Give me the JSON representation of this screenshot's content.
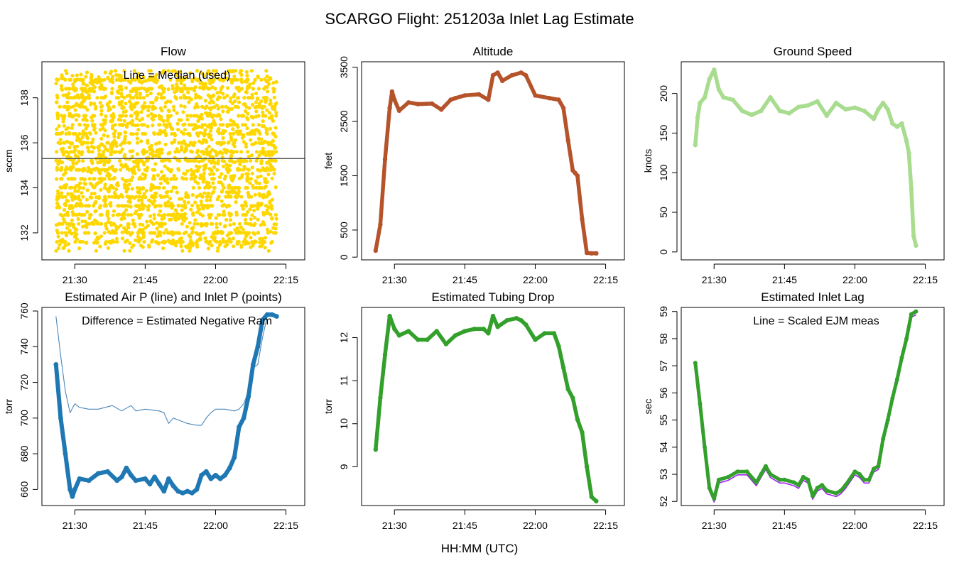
{
  "figure": {
    "title": "SCARGO Flight: 251203a  Inlet Lag Estimate",
    "xlabel": "HH:MM (UTC)"
  },
  "chart_data": [
    {
      "id": "flow",
      "type": "scatter",
      "title": "Flow",
      "ylabel": "sccm",
      "annotation": "Line = Median (used)",
      "color": "#FFD700",
      "line_color": "#555555",
      "xlim": [
        1283,
        1339
      ],
      "ylim": [
        130.8,
        139.6
      ],
      "xticks": [
        1290,
        1305,
        1320,
        1335
      ],
      "xticklabels": [
        "21:30",
        "21:45",
        "22:00",
        "22:15"
      ],
      "yticks": [
        132,
        134,
        136,
        138
      ],
      "yticklabels": [
        "132",
        "134",
        "136",
        "138"
      ],
      "median": 135.3,
      "noise": {
        "x_start": 1286,
        "x_end": 1333,
        "y_min": 131.3,
        "y_max": 139.2,
        "n_points": 2600
      }
    },
    {
      "id": "altitude",
      "type": "line",
      "title": "Altitude",
      "ylabel": "feet",
      "color": "#B5532A",
      "xlim": [
        1283,
        1339
      ],
      "ylim": [
        -50,
        3600
      ],
      "xticks": [
        1290,
        1305,
        1320,
        1335
      ],
      "xticklabels": [
        "21:30",
        "21:45",
        "22:00",
        "22:15"
      ],
      "yticks": [
        0,
        500,
        1500,
        2500,
        3500
      ],
      "yticklabels": [
        "0",
        "500",
        "1500",
        "2500",
        "3500"
      ],
      "x": [
        1286,
        1287,
        1288,
        1289,
        1289.5,
        1290,
        1291,
        1293,
        1295,
        1298,
        1300,
        1302,
        1303,
        1305,
        1308,
        1310,
        1311,
        1312,
        1313,
        1315,
        1317,
        1318,
        1320,
        1323,
        1325,
        1326,
        1327,
        1328,
        1328.5,
        1329,
        1330,
        1331,
        1332,
        1333
      ],
      "y": [
        120,
        600,
        1800,
        2750,
        3050,
        2900,
        2700,
        2850,
        2820,
        2830,
        2720,
        2900,
        2930,
        2980,
        3000,
        2900,
        3350,
        3400,
        3250,
        3350,
        3400,
        3350,
        2980,
        2930,
        2900,
        2750,
        2150,
        1600,
        1550,
        1500,
        700,
        80,
        70,
        70
      ]
    },
    {
      "id": "groundspeed",
      "type": "line",
      "title": "Ground Speed",
      "ylabel": "knots",
      "color": "#A8DC8F",
      "xlim": [
        1283,
        1339
      ],
      "ylim": [
        -10,
        240
      ],
      "xticks": [
        1290,
        1305,
        1320,
        1335
      ],
      "xticklabels": [
        "21:30",
        "21:45",
        "22:00",
        "22:15"
      ],
      "yticks": [
        0,
        50,
        100,
        150,
        200
      ],
      "yticklabels": [
        "0",
        "50",
        "100",
        "150",
        "200"
      ],
      "x": [
        1286,
        1286.5,
        1287,
        1288,
        1289,
        1290,
        1291,
        1292,
        1294,
        1296,
        1298,
        1300,
        1302,
        1304,
        1306,
        1308,
        1310,
        1312,
        1314,
        1316,
        1318,
        1320,
        1322,
        1324,
        1325,
        1326,
        1327,
        1328,
        1329,
        1330,
        1331,
        1331.5,
        1332,
        1332.5,
        1333
      ],
      "y": [
        135,
        170,
        188,
        195,
        218,
        230,
        205,
        195,
        192,
        178,
        173,
        178,
        195,
        178,
        175,
        183,
        185,
        190,
        172,
        188,
        180,
        182,
        178,
        168,
        180,
        188,
        180,
        162,
        158,
        162,
        140,
        125,
        80,
        20,
        8
      ]
    },
    {
      "id": "pressure",
      "type": "line",
      "title": "Estimated Air P (line) and Inlet P (points)",
      "ylabel": "torr",
      "annotation": "Difference = Estimated Negative Ram",
      "color": "#1F78B4",
      "air_color": "#4A86BA",
      "xlim": [
        1283,
        1339
      ],
      "ylim": [
        651,
        762
      ],
      "xticks": [
        1290,
        1305,
        1320,
        1335
      ],
      "xticklabels": [
        "21:30",
        "21:45",
        "22:00",
        "22:15"
      ],
      "yticks": [
        660,
        680,
        700,
        720,
        740,
        760
      ],
      "yticklabels": [
        "660",
        "680",
        "700",
        "720",
        "740",
        "760"
      ],
      "air_x": [
        1286,
        1287,
        1288,
        1289,
        1290,
        1291,
        1293,
        1295,
        1298,
        1300,
        1302,
        1303,
        1305,
        1308,
        1309,
        1310,
        1311,
        1312,
        1314,
        1316,
        1317,
        1318,
        1319,
        1320,
        1322,
        1324,
        1325,
        1326,
        1327,
        1328,
        1329,
        1330,
        1331,
        1332,
        1333
      ],
      "air_y": [
        757,
        735,
        715,
        703,
        708,
        706,
        705,
        705,
        707,
        704,
        707,
        704,
        705,
        704,
        703,
        697,
        700,
        699,
        697,
        696,
        696,
        700,
        703,
        705,
        705,
        704,
        705,
        708,
        715,
        728,
        730,
        745,
        757,
        758,
        758
      ],
      "inlet_x": [
        1286,
        1287,
        1288,
        1289,
        1289.5,
        1290,
        1291,
        1293,
        1295,
        1297,
        1299,
        1300,
        1301,
        1302,
        1303,
        1305,
        1306,
        1307,
        1308,
        1309,
        1310,
        1311,
        1312,
        1313,
        1314,
        1315,
        1316,
        1317,
        1318,
        1319,
        1320,
        1321,
        1322,
        1323,
        1324,
        1325,
        1326,
        1327,
        1328,
        1329,
        1330,
        1331,
        1332,
        1333
      ],
      "inlet_y": [
        730,
        700,
        680,
        660,
        656,
        660,
        666,
        665,
        669,
        670,
        665,
        667,
        672,
        668,
        665,
        666,
        663,
        667,
        663,
        659,
        666,
        662,
        659,
        658,
        659,
        658,
        660,
        668,
        670,
        666,
        668,
        666,
        668,
        672,
        678,
        695,
        700,
        712,
        730,
        740,
        755,
        758,
        758,
        757
      ]
    },
    {
      "id": "tubingdrop",
      "type": "line",
      "title": "Estimated Tubing Drop",
      "ylabel": "torr",
      "color": "#33A02C",
      "xlim": [
        1283,
        1339
      ],
      "ylim": [
        8.1,
        12.7
      ],
      "xticks": [
        1290,
        1305,
        1320,
        1335
      ],
      "xticklabels": [
        "21:30",
        "21:45",
        "22:00",
        "22:15"
      ],
      "yticks": [
        9,
        10,
        11,
        12
      ],
      "yticklabels": [
        "9",
        "10",
        "11",
        "12"
      ],
      "x": [
        1286,
        1287,
        1288,
        1289,
        1290,
        1291,
        1293,
        1295,
        1297,
        1299,
        1301,
        1303,
        1305,
        1307,
        1309,
        1310,
        1311,
        1312,
        1314,
        1316,
        1317,
        1318,
        1320,
        1322,
        1324,
        1325,
        1326,
        1327,
        1328,
        1329,
        1330,
        1331,
        1332,
        1333
      ],
      "y": [
        9.4,
        10.6,
        11.6,
        12.5,
        12.2,
        12.05,
        12.15,
        11.95,
        11.95,
        12.15,
        11.85,
        12.05,
        12.15,
        12.2,
        12.2,
        12.1,
        12.5,
        12.25,
        12.4,
        12.45,
        12.4,
        12.3,
        11.95,
        12.1,
        12.1,
        11.8,
        11.3,
        10.8,
        10.6,
        10.1,
        9.8,
        9.0,
        8.3,
        8.2
      ]
    },
    {
      "id": "inletlag",
      "type": "line",
      "title": "Estimated Inlet Lag",
      "ylabel": "sec",
      "annotation": "Line = Scaled EJM meas",
      "color": "#33A02C",
      "ejm_color": "#A020F0",
      "xlim": [
        1283,
        1339
      ],
      "ylim": [
        51.85,
        59.15
      ],
      "xticks": [
        1290,
        1305,
        1320,
        1335
      ],
      "xticklabels": [
        "21:30",
        "21:45",
        "22:00",
        "22:15"
      ],
      "yticks": [
        52,
        53,
        54,
        55,
        56,
        57,
        58,
        59
      ],
      "yticklabels": [
        "52",
        "53",
        "54",
        "55",
        "56",
        "57",
        "58",
        "59"
      ],
      "x": [
        1286,
        1287,
        1288,
        1289,
        1290,
        1291,
        1293,
        1295,
        1297,
        1299,
        1300,
        1301,
        1302,
        1304,
        1305,
        1307,
        1308,
        1309,
        1310,
        1311,
        1312,
        1313,
        1314,
        1316,
        1317,
        1318,
        1320,
        1321,
        1322,
        1323,
        1324,
        1325,
        1326,
        1327,
        1328,
        1329,
        1330,
        1331,
        1332,
        1333
      ],
      "y": [
        57.1,
        55.6,
        54.0,
        52.5,
        52.1,
        52.8,
        52.9,
        53.1,
        53.1,
        52.7,
        53.0,
        53.3,
        53.0,
        52.8,
        52.8,
        52.7,
        52.6,
        52.9,
        52.8,
        52.2,
        52.5,
        52.6,
        52.4,
        52.3,
        52.4,
        52.6,
        53.1,
        53.0,
        52.8,
        52.8,
        53.2,
        53.3,
        54.3,
        55.0,
        55.8,
        56.5,
        57.3,
        58.0,
        58.9,
        59.0
      ],
      "ejm_offset": -0.12
    }
  ]
}
